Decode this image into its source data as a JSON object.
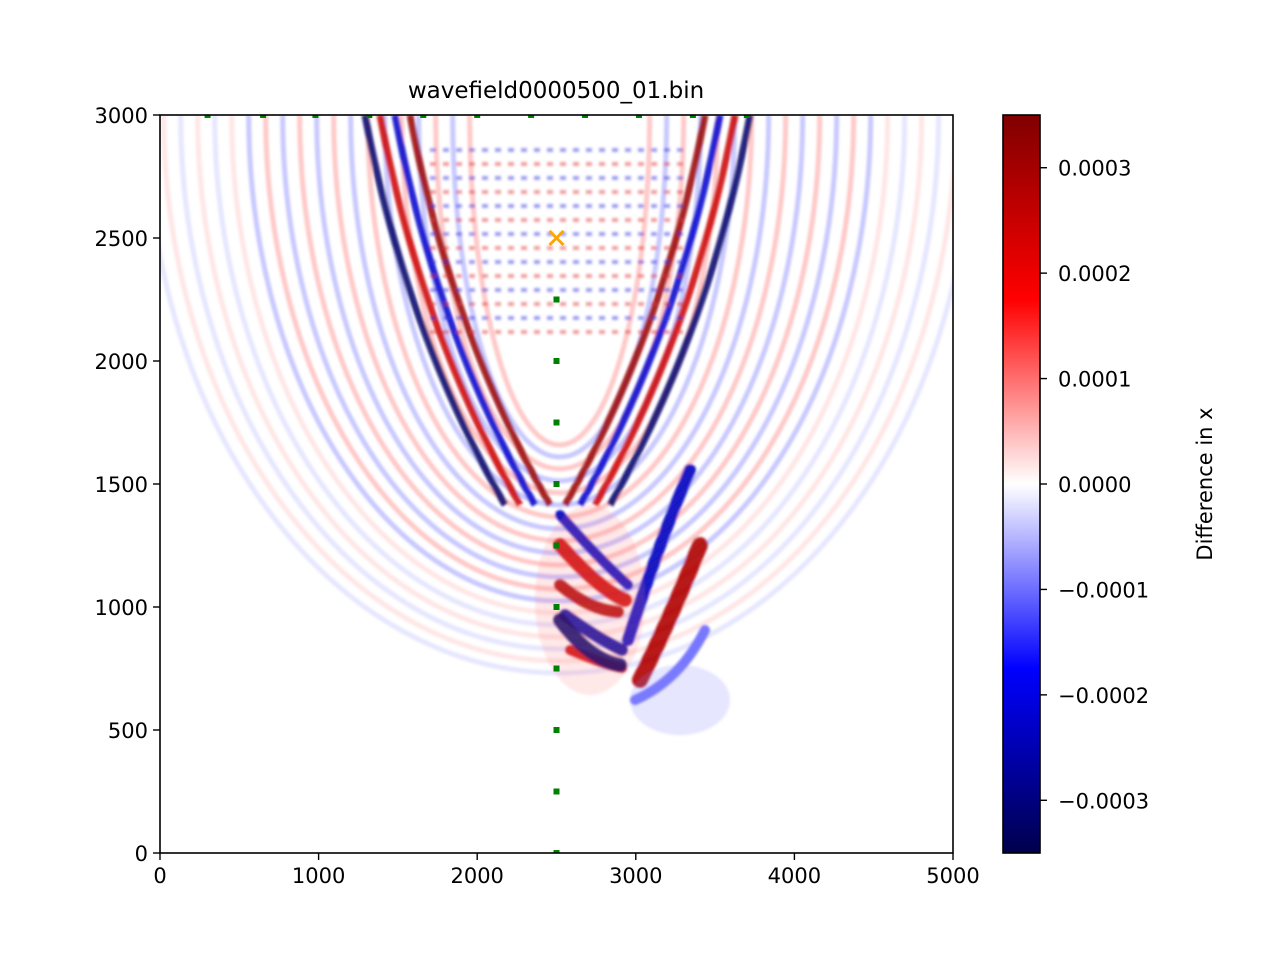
{
  "chart_data": {
    "type": "heatmap",
    "title": "wavefield0000500_01.bin",
    "xlabel": "",
    "ylabel": "",
    "xlim": [
      0,
      5000
    ],
    "ylim": [
      0,
      3000
    ],
    "x_ticks": [
      "0",
      "1000",
      "2000",
      "3000",
      "4000",
      "5000"
    ],
    "y_ticks": [
      "0",
      "500",
      "1000",
      "1500",
      "2000",
      "2500",
      "3000"
    ],
    "colormap": "seismic",
    "colorbar": {
      "label": "Difference in x",
      "range": [
        -0.00035,
        0.00035
      ],
      "ticks": [
        {
          "value": 0.0003,
          "label": "0.0003"
        },
        {
          "value": 0.0002,
          "label": "0.0002"
        },
        {
          "value": 0.0001,
          "label": "0.0001"
        },
        {
          "value": 0.0,
          "label": "0.0000"
        },
        {
          "value": -0.0001,
          "label": "−0.0001"
        },
        {
          "value": -0.0002,
          "label": "−0.0002"
        },
        {
          "value": -0.0003,
          "label": "−0.0003"
        }
      ]
    },
    "source": {
      "x": 2500,
      "y": 2500,
      "marker": "x",
      "color": "#ffa500"
    },
    "receivers": {
      "marker": "square",
      "color": "#008000",
      "points": [
        [
          300,
          3000
        ],
        [
          650,
          3000
        ],
        [
          980,
          3000
        ],
        [
          1320,
          3000
        ],
        [
          1660,
          3000
        ],
        [
          2000,
          3000
        ],
        [
          2340,
          3000
        ],
        [
          2680,
          3000
        ],
        [
          3020,
          3000
        ],
        [
          3360,
          3000
        ],
        [
          3700,
          3000
        ],
        [
          2500,
          2250
        ],
        [
          2500,
          2000
        ],
        [
          2500,
          1750
        ],
        [
          2500,
          1500
        ],
        [
          2500,
          1250
        ],
        [
          2500,
          1000
        ],
        [
          2500,
          750
        ],
        [
          2500,
          500
        ],
        [
          2500,
          250
        ],
        [
          2500,
          0
        ]
      ]
    },
    "grid": false
  }
}
